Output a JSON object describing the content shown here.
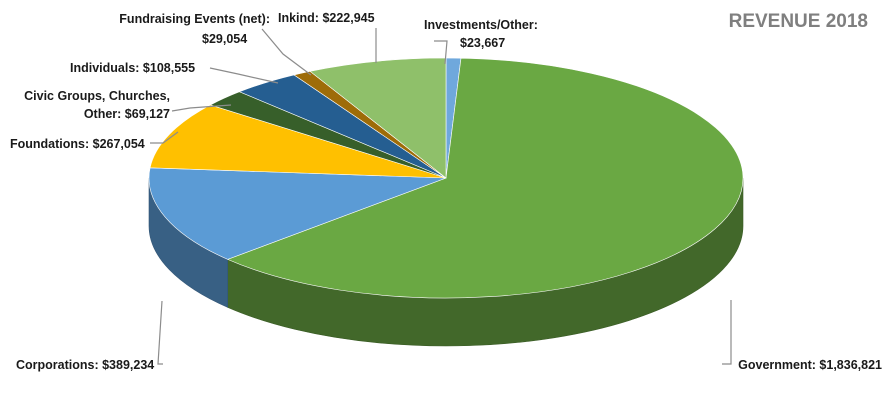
{
  "chart_data": {
    "type": "pie",
    "title": "REVENUE 2018",
    "slices": [
      {
        "label_lines": [
          "Investments/Other:",
          "$23,667"
        ],
        "name": "Investments/Other",
        "value": 23667,
        "color": "#6fa8dc"
      },
      {
        "label_lines": [
          "Government:  $1,836,821"
        ],
        "name": "Government",
        "value": 1836821,
        "color": "#6aa843"
      },
      {
        "label_lines": [
          "Corporations: $389,234"
        ],
        "name": "Corporations",
        "value": 389234,
        "color": "#5b9bd5"
      },
      {
        "label_lines": [
          "Foundations: $267,054"
        ],
        "name": "Foundations",
        "value": 267054,
        "color": "#ffc000"
      },
      {
        "label_lines": [
          "Civic Groups, Churches,",
          "Other: $69,127"
        ],
        "name": "Civic Groups, Churches, Other",
        "value": 69127,
        "color": "#375f2a"
      },
      {
        "label_lines": [
          "Individuals: $108,555"
        ],
        "name": "Individuals",
        "value": 108555,
        "color": "#255e91"
      },
      {
        "label_lines": [
          "Fundraising Events (net):",
          "$29,054"
        ],
        "name": "Fundraising Events (net)",
        "value": 29054,
        "color": "#9e6c08"
      },
      {
        "label_lines": [
          "Inkind: $222,945"
        ],
        "name": "Inkind",
        "value": 222945,
        "color": "#8fc06a"
      }
    ],
    "legend": "none"
  }
}
